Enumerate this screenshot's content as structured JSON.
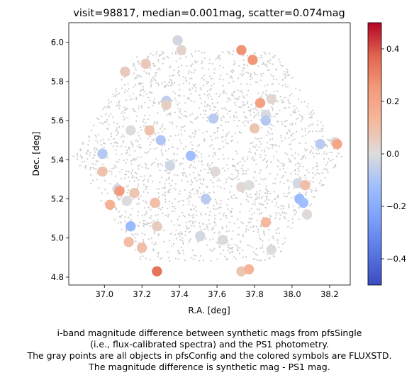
{
  "chart_data": {
    "type": "scatter",
    "title": "visit=98817, median=0.001mag, scatter=0.074mag",
    "xlabel": "R.A. [deg]",
    "ylabel": "Dec. [deg]",
    "xlim": [
      36.81,
      38.31
    ],
    "ylim": [
      4.76,
      6.1
    ],
    "xticks": [
      "37.0",
      "37.2",
      "37.4",
      "37.6",
      "37.8",
      "38.0",
      "38.2"
    ],
    "yticks": [
      "4.8",
      "5.0",
      "5.2",
      "5.4",
      "5.6",
      "5.8",
      "6.0"
    ],
    "grid": false,
    "colorbar": {
      "cmap": "coolwarm",
      "range": [
        -0.5,
        0.5
      ],
      "ticks": [
        "0.4",
        "0.2",
        "0.0",
        "−0.2",
        "−0.4"
      ]
    },
    "background_points": {
      "color": "#cccccc",
      "description_region": "hexagonal field, center RA 37.55 Dec 5.42"
    },
    "points": [
      {
        "x": 37.39,
        "y": 6.01,
        "v": -0.02
      },
      {
        "x": 37.41,
        "y": 5.96,
        "v": 0.03
      },
      {
        "x": 37.73,
        "y": 5.96,
        "v": 0.27
      },
      {
        "x": 37.79,
        "y": 5.91,
        "v": 0.26
      },
      {
        "x": 37.22,
        "y": 5.89,
        "v": 0.07
      },
      {
        "x": 37.11,
        "y": 5.85,
        "v": 0.06
      },
      {
        "x": 37.33,
        "y": 5.7,
        "v": -0.06
      },
      {
        "x": 37.33,
        "y": 5.68,
        "v": 0.05
      },
      {
        "x": 37.83,
        "y": 5.69,
        "v": 0.22
      },
      {
        "x": 37.89,
        "y": 5.71,
        "v": 0.02
      },
      {
        "x": 37.86,
        "y": 5.63,
        "v": -0.01
      },
      {
        "x": 37.86,
        "y": 5.6,
        "v": -0.08
      },
      {
        "x": 37.8,
        "y": 5.56,
        "v": 0.08
      },
      {
        "x": 37.58,
        "y": 5.61,
        "v": -0.07
      },
      {
        "x": 37.14,
        "y": 5.55,
        "v": 0.0
      },
      {
        "x": 37.24,
        "y": 5.55,
        "v": 0.09
      },
      {
        "x": 37.3,
        "y": 5.5,
        "v": -0.09
      },
      {
        "x": 37.35,
        "y": 5.37,
        "v": -0.03
      },
      {
        "x": 37.46,
        "y": 5.42,
        "v": -0.12
      },
      {
        "x": 36.99,
        "y": 5.43,
        "v": -0.08
      },
      {
        "x": 36.99,
        "y": 5.34,
        "v": 0.09
      },
      {
        "x": 37.59,
        "y": 5.34,
        "v": 0.01
      },
      {
        "x": 37.73,
        "y": 5.26,
        "v": 0.02
      },
      {
        "x": 37.77,
        "y": 5.27,
        "v": 0.0
      },
      {
        "x": 38.03,
        "y": 5.28,
        "v": -0.02
      },
      {
        "x": 38.07,
        "y": 5.27,
        "v": 0.1
      },
      {
        "x": 38.15,
        "y": 5.48,
        "v": -0.07
      },
      {
        "x": 38.23,
        "y": 5.49,
        "v": 0.02
      },
      {
        "x": 38.24,
        "y": 5.48,
        "v": 0.2
      },
      {
        "x": 37.07,
        "y": 5.25,
        "v": -0.02
      },
      {
        "x": 37.08,
        "y": 5.24,
        "v": 0.24
      },
      {
        "x": 37.16,
        "y": 5.23,
        "v": 0.08
      },
      {
        "x": 37.12,
        "y": 5.19,
        "v": 0.0
      },
      {
        "x": 37.03,
        "y": 5.17,
        "v": 0.15
      },
      {
        "x": 37.27,
        "y": 5.18,
        "v": 0.1
      },
      {
        "x": 37.54,
        "y": 5.2,
        "v": -0.07
      },
      {
        "x": 38.04,
        "y": 5.2,
        "v": -0.14
      },
      {
        "x": 38.06,
        "y": 5.18,
        "v": -0.12
      },
      {
        "x": 38.08,
        "y": 5.12,
        "v": 0.01
      },
      {
        "x": 37.14,
        "y": 5.06,
        "v": -0.14
      },
      {
        "x": 37.28,
        "y": 5.06,
        "v": 0.06
      },
      {
        "x": 37.86,
        "y": 5.08,
        "v": 0.12
      },
      {
        "x": 37.51,
        "y": 5.01,
        "v": -0.02
      },
      {
        "x": 37.63,
        "y": 4.99,
        "v": -0.01
      },
      {
        "x": 37.13,
        "y": 4.98,
        "v": 0.11
      },
      {
        "x": 37.2,
        "y": 4.95,
        "v": 0.1
      },
      {
        "x": 37.89,
        "y": 4.94,
        "v": 0.0
      },
      {
        "x": 37.28,
        "y": 4.83,
        "v": 0.34
      },
      {
        "x": 37.73,
        "y": 4.83,
        "v": 0.08
      },
      {
        "x": 37.77,
        "y": 4.84,
        "v": 0.14
      }
    ]
  },
  "caption": {
    "line1": "i-band magnitude difference between synthetic mags from pfsSingle",
    "line2": "(i.e., flux-calibrated spectra) and the PS1 photometry.",
    "line3": "The gray points are all objects in pfsConfig and the colored symbols are FLUXSTD.",
    "line4": "The magnitude difference is synthetic mag - PS1 mag."
  }
}
